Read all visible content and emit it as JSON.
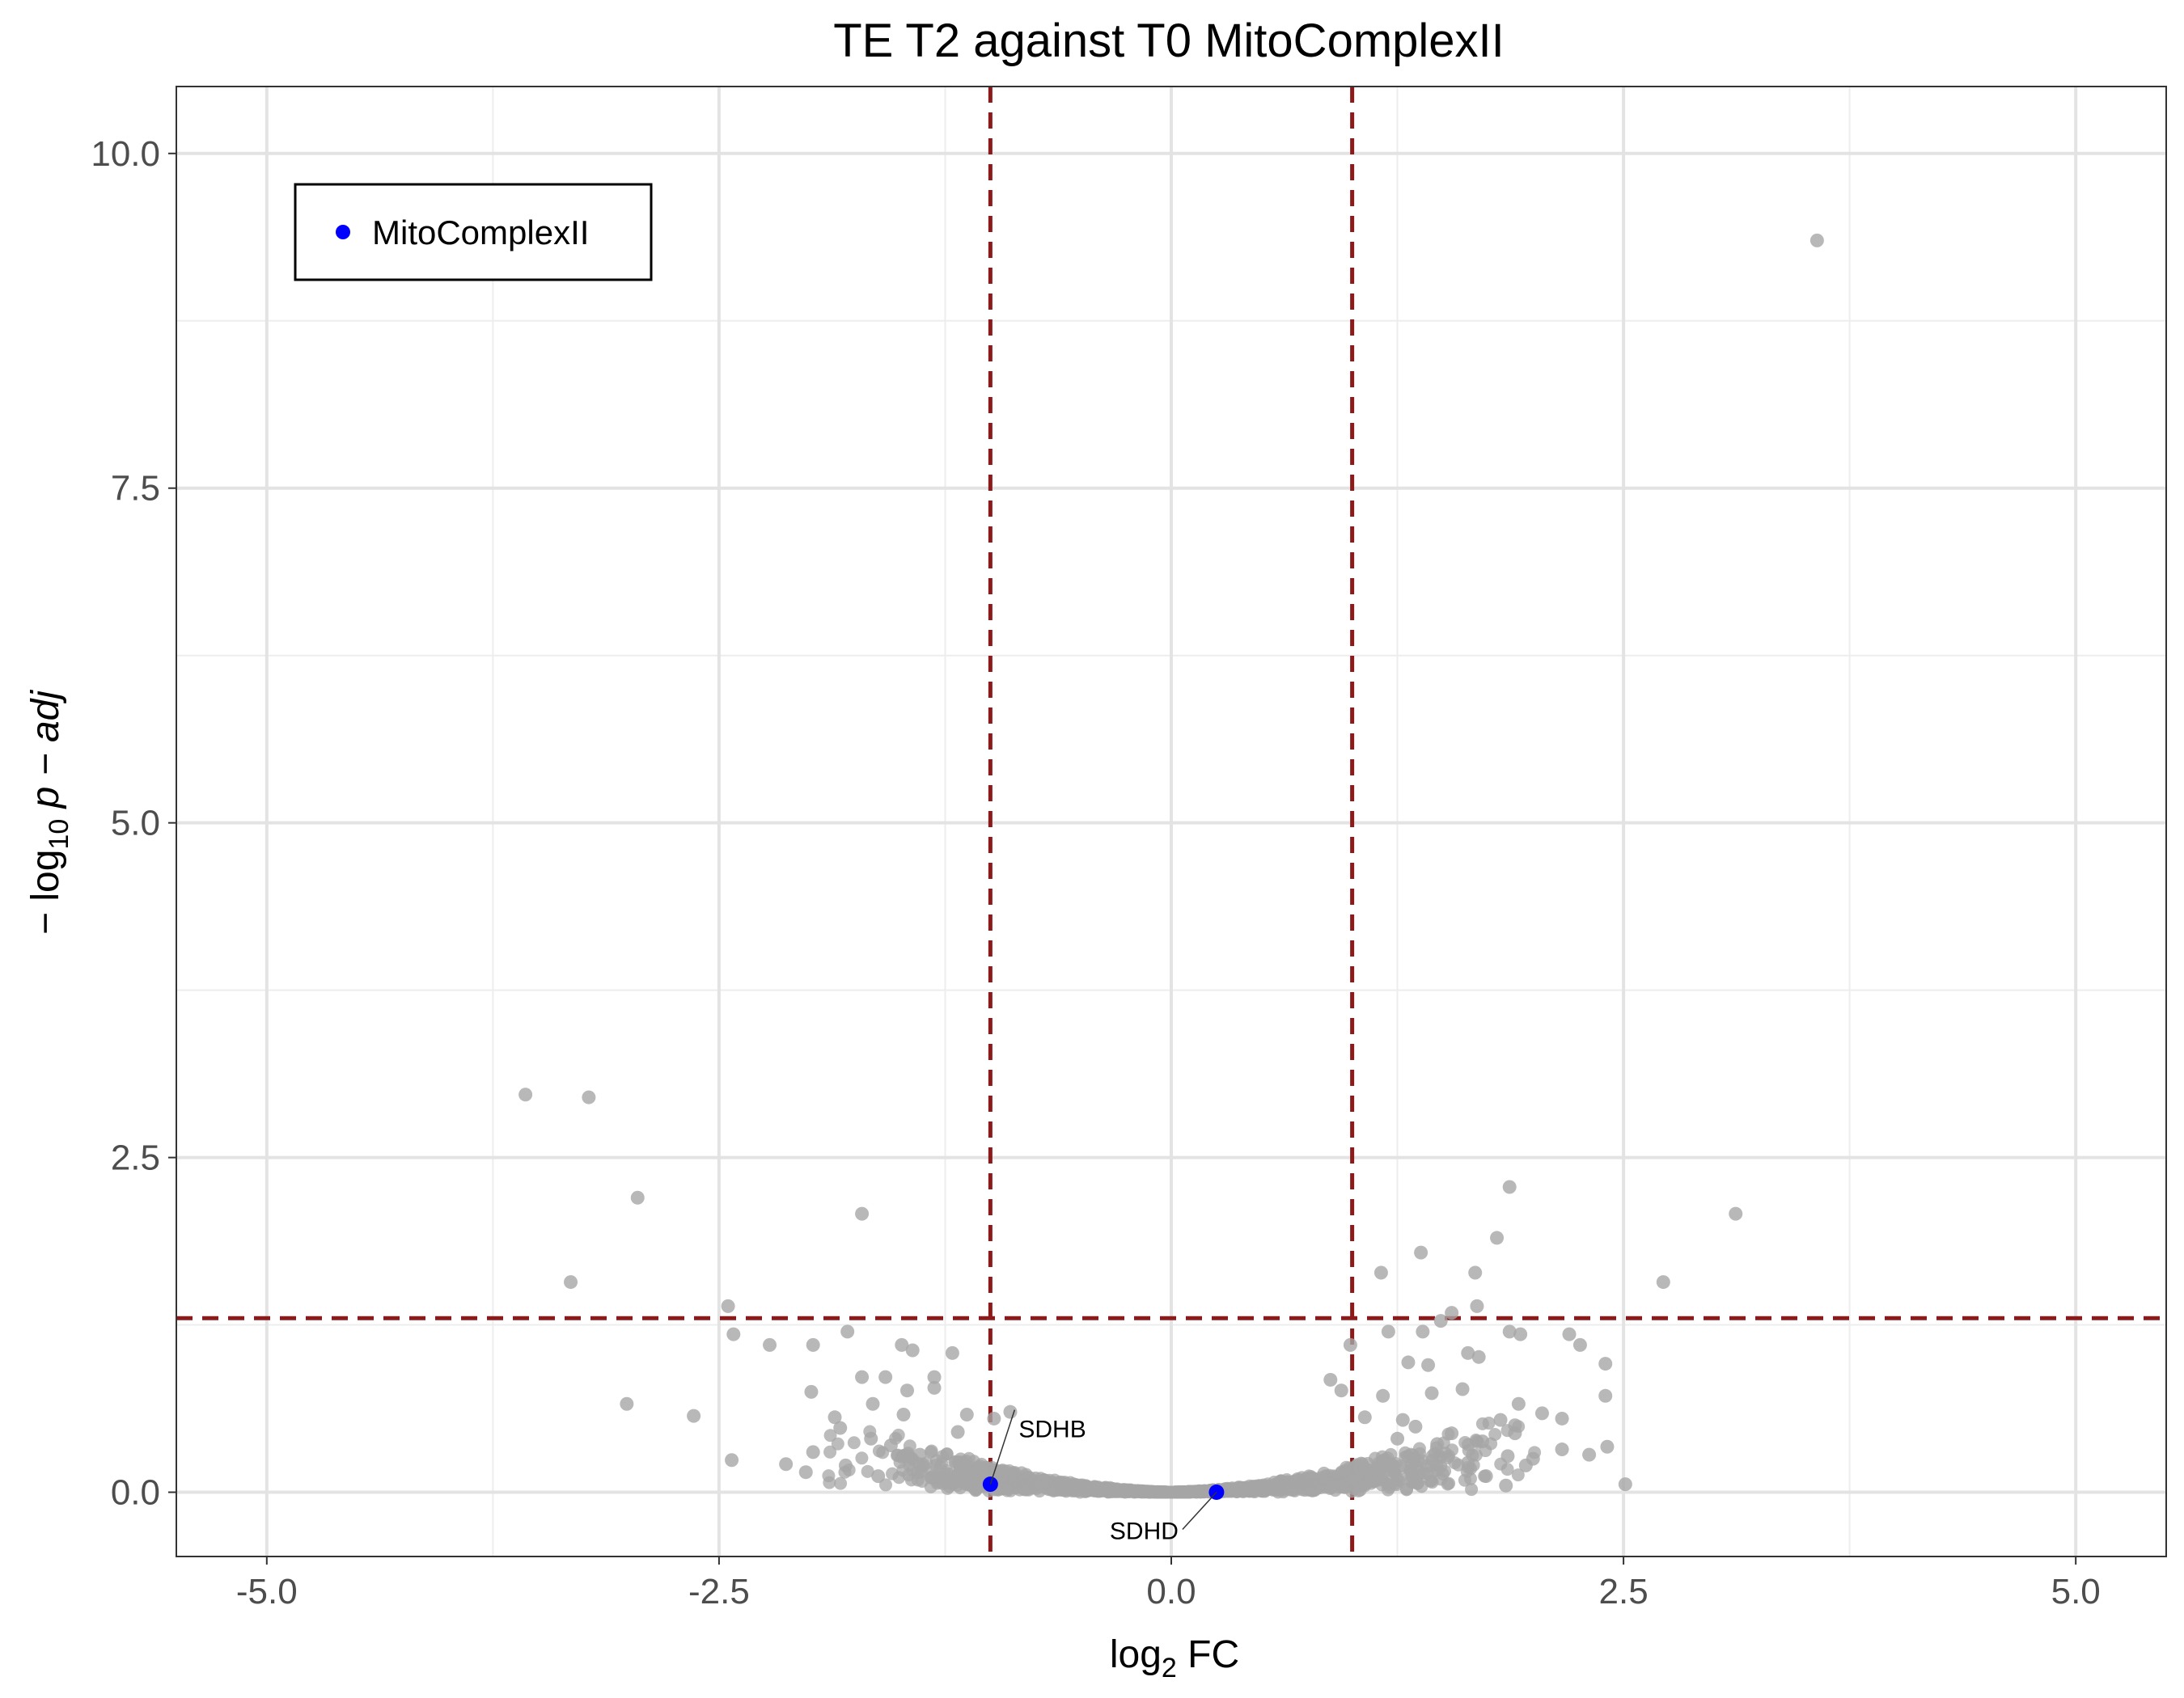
{
  "chart_data": {
    "type": "scatter",
    "title": "TE T2 against T0 MitoComplexII",
    "xlabel": {
      "main": "log",
      "sub": "2",
      "rest": " FC"
    },
    "ylabel": {
      "main": "− log",
      "sub": "10",
      "rest": " p − adj"
    },
    "xlim": [
      -5.5,
      5.5
    ],
    "ylim": [
      -0.48,
      10.5
    ],
    "x_ticks": [
      -5.0,
      -2.5,
      0.0,
      2.5,
      5.0
    ],
    "x_tick_labels": [
      "-5.0",
      "-2.5",
      "0.0",
      "2.5",
      "5.0"
    ],
    "y_ticks": [
      0.0,
      2.5,
      5.0,
      7.5,
      10.0
    ],
    "y_tick_labels": [
      "0.0",
      "2.5",
      "5.0",
      "7.5",
      "10.0"
    ],
    "grid": true,
    "thresholds": {
      "vertical": [
        -1.0,
        1.0
      ],
      "horizontal": 1.3,
      "color": "#8b1a1a",
      "style": "dashed"
    },
    "legend": {
      "position": "top-left",
      "entries": [
        {
          "label": "MitoComplexII",
          "color": "#0000ff"
        }
      ]
    },
    "series": [
      {
        "name": "background",
        "color": "#a6a6a6",
        "points": [
          [
            3.57,
            9.35
          ],
          [
            -3.57,
            2.97
          ],
          [
            -3.22,
            2.95
          ],
          [
            -2.95,
            2.2
          ],
          [
            -1.71,
            2.08
          ],
          [
            3.12,
            2.08
          ],
          [
            1.87,
            2.28
          ],
          [
            1.8,
            1.9
          ],
          [
            1.38,
            1.79
          ],
          [
            1.16,
            1.64
          ],
          [
            1.68,
            1.64
          ],
          [
            2.72,
            1.57
          ],
          [
            -3.32,
            1.57
          ],
          [
            -2.45,
            1.39
          ],
          [
            1.69,
            1.39
          ],
          [
            1.55,
            1.34
          ],
          [
            1.49,
            1.28
          ],
          [
            -2.42,
            1.18
          ],
          [
            -2.22,
            1.1
          ],
          [
            -1.98,
            1.1
          ],
          [
            -1.49,
            1.1
          ],
          [
            -1.43,
            1.06
          ],
          [
            -1.21,
            1.04
          ],
          [
            -1.79,
            1.2
          ],
          [
            0.99,
            1.1
          ],
          [
            1.2,
            1.2
          ],
          [
            1.39,
            1.2
          ],
          [
            1.87,
            1.2
          ],
          [
            1.93,
            1.18
          ],
          [
            2.2,
            1.18
          ],
          [
            2.26,
            1.1
          ],
          [
            2.4,
            0.96
          ],
          [
            1.31,
            0.97
          ],
          [
            1.64,
            1.04
          ],
          [
            1.42,
            0.95
          ],
          [
            1.7,
            1.01
          ],
          [
            -1.71,
            0.86
          ],
          [
            -1.58,
            0.86
          ],
          [
            -1.31,
            0.86
          ],
          [
            -1.46,
            0.76
          ],
          [
            -3.01,
            0.66
          ],
          [
            -2.64,
            0.57
          ],
          [
            -1.99,
            0.75
          ],
          [
            -1.86,
            0.56
          ],
          [
            -1.83,
            0.48
          ],
          [
            -1.65,
            0.66
          ],
          [
            -1.48,
            0.58
          ],
          [
            -1.31,
            0.78
          ],
          [
            -1.13,
            0.58
          ],
          [
            -0.89,
            0.6
          ],
          [
            -2.43,
            0.24
          ],
          [
            -2.13,
            0.21
          ],
          [
            -1.98,
            0.3
          ],
          [
            0.88,
            0.84
          ],
          [
            0.94,
            0.76
          ],
          [
            1.17,
            0.72
          ],
          [
            1.44,
            0.74
          ],
          [
            1.61,
            0.77
          ],
          [
            1.92,
            0.66
          ],
          [
            2.05,
            0.59
          ],
          [
            2.4,
            0.72
          ],
          [
            1.82,
            0.54
          ],
          [
            1.9,
            0.5
          ],
          [
            2.16,
            0.55
          ],
          [
            1.07,
            0.56
          ],
          [
            1.28,
            0.54
          ],
          [
            1.35,
            0.49
          ],
          [
            1.55,
            0.44
          ],
          [
            2.16,
            0.32
          ],
          [
            2.31,
            0.28
          ],
          [
            2.41,
            0.34
          ],
          [
            1.86,
            0.27
          ],
          [
            2.0,
            0.25
          ],
          [
            2.51,
            0.06
          ],
          [
            -1.55,
            0.35
          ],
          [
            -1.8,
            0.2
          ],
          [
            -1.18,
            0.45
          ],
          [
            -0.98,
            0.55
          ],
          [
            -1.39,
            0.28
          ],
          [
            -1.66,
            0.4
          ],
          [
            1.25,
            0.4
          ],
          [
            1.47,
            0.36
          ],
          [
            1.72,
            0.38
          ],
          [
            1.64,
            0.22
          ],
          [
            1.9,
            0.44
          ],
          [
            1.96,
            0.2
          ],
          [
            1.74,
            0.12
          ],
          [
            1.85,
            0.05
          ],
          [
            -2.02,
            0.15
          ],
          [
            -1.62,
            0.12
          ]
        ]
      },
      {
        "name": "MitoComplexII",
        "color": "#0000ff",
        "points": [
          {
            "x": -1.0,
            "y": 0.06,
            "label": "SDHB"
          },
          {
            "x": 0.25,
            "y": 0.0,
            "label": "SDHD"
          }
        ]
      }
    ]
  }
}
